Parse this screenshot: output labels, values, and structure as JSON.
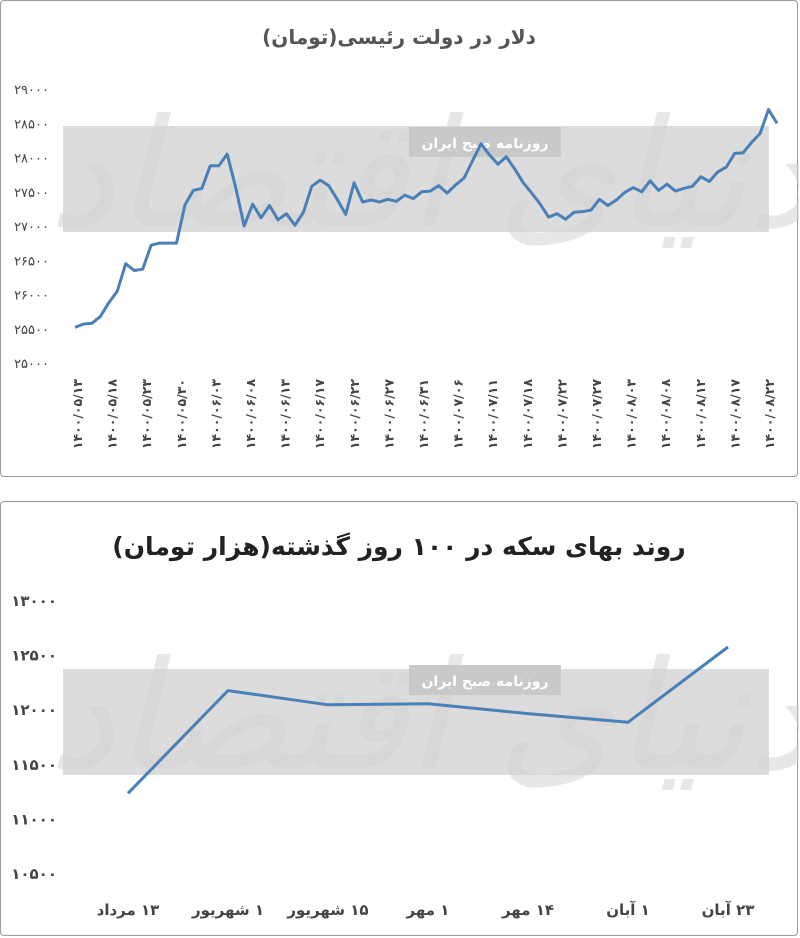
{
  "watermark": {
    "logo_text": "دنیای اقتصاد",
    "label": "روزنامه صبح ایران"
  },
  "colors": {
    "line": "#4a80b8",
    "band": "#dcdcdc"
  },
  "chart_data": [
    {
      "type": "line",
      "title": "دلار در دولت رئیسی(تومان)",
      "ylim": [
        25000,
        29000
      ],
      "yticks": [
        "۲۵۰۰۰",
        "۲۵۵۰۰",
        "۲۶۰۰۰",
        "۲۶۵۰۰",
        "۲۷۰۰۰",
        "۲۷۵۰۰",
        "۲۸۰۰۰",
        "۲۸۵۰۰",
        "۲۹۰۰۰"
      ],
      "ytick_values": [
        25000,
        25500,
        26000,
        26500,
        27000,
        27500,
        28000,
        28500,
        29000
      ],
      "xticks": [
        "۱۴۰۰/۰۵/۱۳",
        "۱۴۰۰/۰۵/۱۸",
        "۱۴۰۰/۰۵/۲۳",
        "۱۴۰۰/۰۵/۳۰",
        "۱۴۰۰/۰۶/۰۳",
        "۱۴۰۰/۰۶/۰۸",
        "۱۴۰۰/۰۶/۱۳",
        "۱۴۰۰/۰۶/۱۷",
        "۱۴۰۰/۰۶/۲۲",
        "۱۴۰۰/۰۶/۲۷",
        "۱۴۰۰/۰۶/۳۱",
        "۱۴۰۰/۰۷/۰۶",
        "۱۴۰۰/۰۷/۱۱",
        "۱۴۰۰/۰۷/۱۸",
        "۱۴۰۰/۰۷/۲۲",
        "۱۴۰۰/۰۷/۲۷",
        "۱۴۰۰/۰۸/۰۳",
        "۱۴۰۰/۰۸/۰۸",
        "۱۴۰۰/۰۸/۱۲",
        "۱۴۰۰/۰۸/۱۷",
        "۱۴۰۰/۰۸/۲۲"
      ],
      "values": [
        25520,
        25570,
        25580,
        25680,
        25880,
        26050,
        26450,
        26350,
        26370,
        26720,
        26750,
        26750,
        26750,
        27310,
        27520,
        27550,
        27880,
        27880,
        28050,
        27560,
        27000,
        27320,
        27120,
        27300,
        27090,
        27180,
        27010,
        27200,
        27580,
        27670,
        27590,
        27390,
        27170,
        27630,
        27350,
        27380,
        27350,
        27390,
        27360,
        27450,
        27400,
        27500,
        27510,
        27590,
        27480,
        27600,
        27700,
        27950,
        28200,
        28040,
        27900,
        28010,
        27830,
        27630,
        27480,
        27320,
        27130,
        27180,
        27100,
        27200,
        27210,
        27230,
        27390,
        27300,
        27380,
        27490,
        27560,
        27500,
        27660,
        27520,
        27610,
        27510,
        27550,
        27580,
        27720,
        27650,
        27790,
        27860,
        28060,
        28070,
        28220,
        28350,
        28700,
        28500
      ]
    },
    {
      "type": "line",
      "title": "روند بهای سکه در ۱۰۰ روز گذشته(هزار تومان)",
      "ylim": [
        10500,
        13000
      ],
      "yticks": [
        "۱۰۵۰۰",
        "۱۱۰۰۰",
        "۱۱۵۰۰",
        "۱۲۰۰۰",
        "۱۲۵۰۰",
        "۱۳۰۰۰"
      ],
      "ytick_values": [
        10500,
        11000,
        11500,
        12000,
        12500,
        13000
      ],
      "categories": [
        "۱۳ مرداد",
        "۱ شهریور",
        "۱۵ شهریور",
        "۱ مهر",
        "۱۴ مهر",
        "۱ آبان",
        "۲۳ آبان"
      ],
      "values": [
        11230,
        12170,
        12040,
        12050,
        11960,
        11880,
        12570
      ]
    }
  ]
}
